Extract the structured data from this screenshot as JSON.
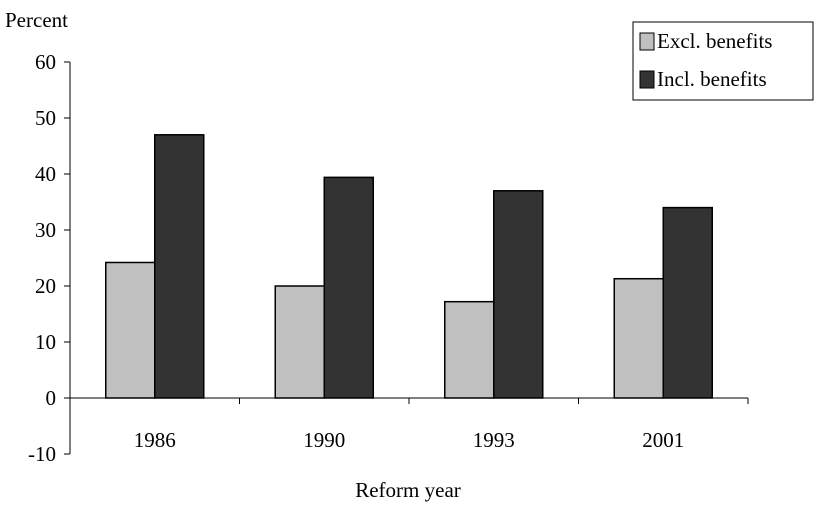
{
  "chart_data": {
    "type": "bar",
    "title": "",
    "ylabel": "Percent",
    "xlabel": "Reform year",
    "categories": [
      "1986",
      "1990",
      "1993",
      "2001"
    ],
    "series": [
      {
        "name": "Excl. benefits",
        "values": [
          24.2,
          20.0,
          17.2,
          21.3
        ],
        "color": "#c0c0c0"
      },
      {
        "name": "Incl. benefits",
        "values": [
          47.0,
          39.4,
          37.0,
          34.0
        ],
        "color": "#333333"
      }
    ],
    "ylim": [
      -10,
      60
    ],
    "yticks": [
      -10,
      0,
      10,
      20,
      30,
      40,
      50,
      60
    ],
    "grid": false,
    "legend": "top-right"
  }
}
